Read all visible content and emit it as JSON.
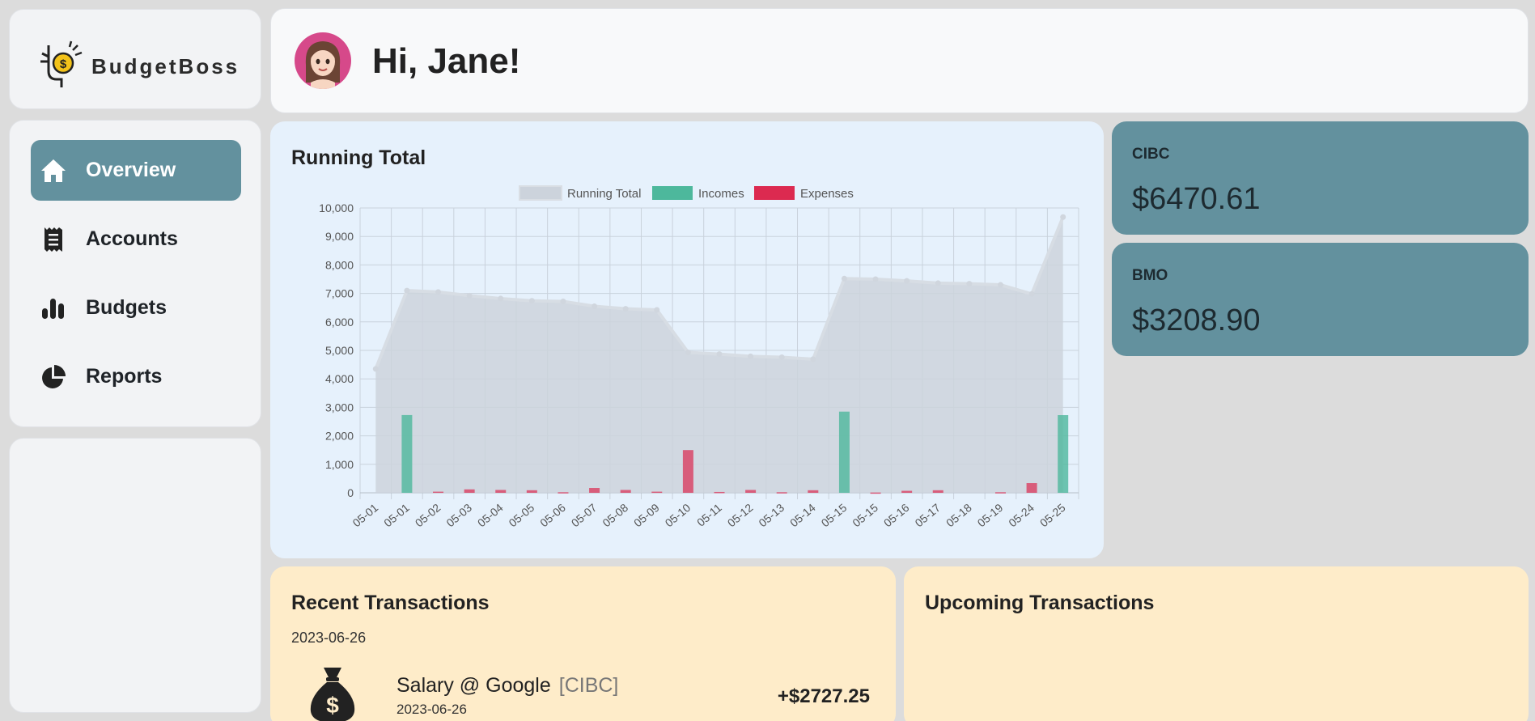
{
  "brand": {
    "name": "BudgetBoss"
  },
  "nav": {
    "items": [
      {
        "label": "Overview",
        "icon": "home-icon",
        "active": true
      },
      {
        "label": "Accounts",
        "icon": "receipt-icon",
        "active": false
      },
      {
        "label": "Budgets",
        "icon": "bar-chart-icon",
        "active": false
      },
      {
        "label": "Reports",
        "icon": "pie-chart-icon",
        "active": false
      }
    ]
  },
  "header": {
    "greeting": "Hi, Jane!"
  },
  "chart": {
    "title": "Running Total"
  },
  "chart_data": {
    "type": "bar",
    "title": "Running Total",
    "legend": [
      "Running Total",
      "Incomes",
      "Expenses"
    ],
    "legend_position": "top",
    "categories": [
      "05-01",
      "05-01",
      "05-02",
      "05-03",
      "05-04",
      "05-05",
      "05-06",
      "05-07",
      "05-08",
      "05-09",
      "05-10",
      "05-11",
      "05-12",
      "05-13",
      "05-14",
      "05-15",
      "05-15",
      "05-16",
      "05-17",
      "05-18",
      "05-19",
      "05-24",
      "05-25"
    ],
    "ylim": [
      0,
      10000
    ],
    "yticks": [
      0,
      1000,
      2000,
      3000,
      4000,
      5000,
      6000,
      7000,
      8000,
      9000,
      10000
    ],
    "grid": true,
    "series": [
      {
        "name": "Running Total",
        "type": "area",
        "color": "#ccd3dc",
        "values": [
          4350,
          7100,
          7050,
          6920,
          6820,
          6740,
          6720,
          6550,
          6460,
          6420,
          4930,
          4870,
          4790,
          4760,
          4690,
          7520,
          7500,
          7440,
          7360,
          7340,
          7300,
          6980,
          9680
        ]
      },
      {
        "name": "Incomes",
        "type": "bar",
        "color": "#4db89c",
        "values": [
          0,
          2730,
          0,
          0,
          0,
          0,
          0,
          0,
          0,
          0,
          0,
          0,
          0,
          0,
          0,
          2850,
          0,
          0,
          0,
          0,
          0,
          0,
          2727
        ]
      },
      {
        "name": "Expenses",
        "type": "bar",
        "color": "#dc2a50",
        "values": [
          0,
          0,
          40,
          120,
          100,
          90,
          20,
          170,
          100,
          40,
          1500,
          30,
          100,
          20,
          90,
          0,
          10,
          70,
          90,
          0,
          20,
          340,
          0
        ]
      }
    ]
  },
  "accounts": [
    {
      "name": "CIBC",
      "balance": "$6470.61"
    },
    {
      "name": "BMO",
      "balance": "$3208.90"
    }
  ],
  "recent": {
    "title": "Recent Transactions",
    "date_group": "2023-06-26",
    "items": [
      {
        "name": "Salary @ Google",
        "account": "[CIBC]",
        "date": "2023-06-26",
        "amount": "+$2727.25",
        "icon": "money-bag-icon"
      }
    ]
  },
  "upcoming": {
    "title": "Upcoming Transactions"
  }
}
